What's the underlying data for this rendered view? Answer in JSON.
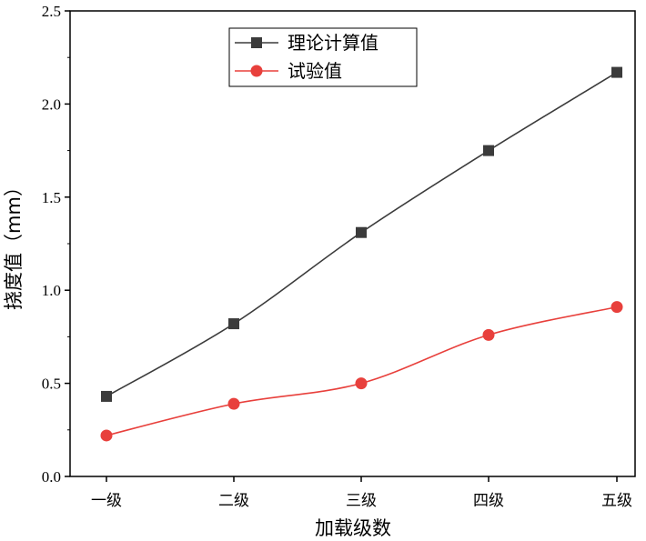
{
  "chart_data": {
    "type": "line",
    "categories": [
      "一级",
      "二级",
      "三级",
      "四级",
      "五级"
    ],
    "series": [
      {
        "name": "理论计算值",
        "values": [
          0.43,
          0.82,
          1.31,
          1.75,
          2.17
        ],
        "color": "#3b3b3b",
        "marker": "square"
      },
      {
        "name": "试验值",
        "values": [
          0.22,
          0.39,
          0.5,
          0.76,
          0.91
        ],
        "color": "#e8403c",
        "marker": "circle"
      }
    ],
    "title": "",
    "xlabel": "加载级数",
    "ylabel": "挠度值（mm）",
    "ylim": [
      0,
      2.5
    ],
    "yticks": [
      "0.0",
      "0.5",
      "1.0",
      "1.5",
      "2.0",
      "2.5"
    ],
    "grid": false,
    "legend_position": "top-center"
  }
}
